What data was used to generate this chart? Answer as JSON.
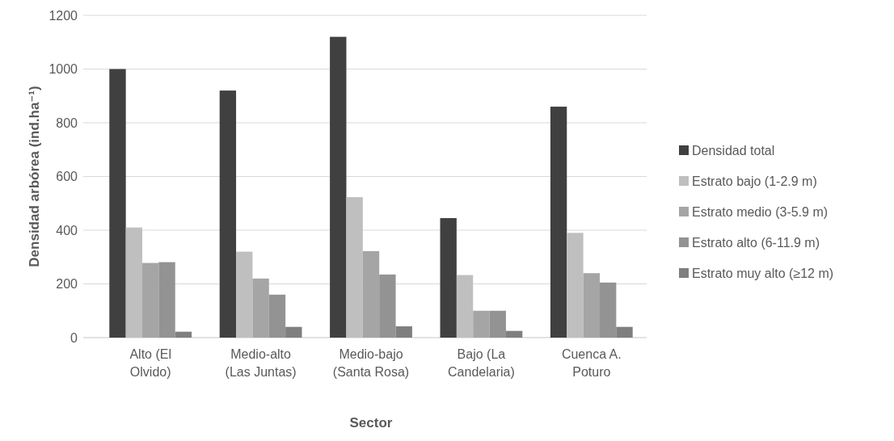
{
  "chart_data": {
    "type": "bar",
    "xlabel": "Sector",
    "ylabel": "Densidad arbórea (ind.ha⁻¹)",
    "categories": [
      "Alto (El Olvido)",
      "Medio-alto (Las Juntas)",
      "Medio-bajo (Santa Rosa)",
      "Bajo (La Candelaria)",
      "Cuenca A. Poturo"
    ],
    "series": [
      {
        "name": "Densidad total",
        "color": "#404040",
        "values": [
          1000,
          920,
          1120,
          445,
          860
        ]
      },
      {
        "name": "Estrato bajo (1-2.9 m)",
        "color": "#bfbfbf",
        "values": [
          410,
          320,
          523,
          233,
          390
        ]
      },
      {
        "name": "Estrato medio (3-5.9 m)",
        "color": "#a5a5a5",
        "values": [
          278,
          220,
          322,
          100,
          240
        ]
      },
      {
        "name": "Estrato alto (6-11.9 m)",
        "color": "#939393",
        "values": [
          281,
          160,
          235,
          100,
          205
        ]
      },
      {
        "name": "Estrato muy alto (≥12 m)",
        "color": "#7f7f7f",
        "values": [
          22,
          40,
          42,
          25,
          40
        ]
      }
    ],
    "ylim": [
      0,
      1200
    ],
    "yticks": [
      0,
      200,
      400,
      600,
      800,
      1000,
      1200
    ],
    "grid": "y",
    "legend": "right"
  }
}
